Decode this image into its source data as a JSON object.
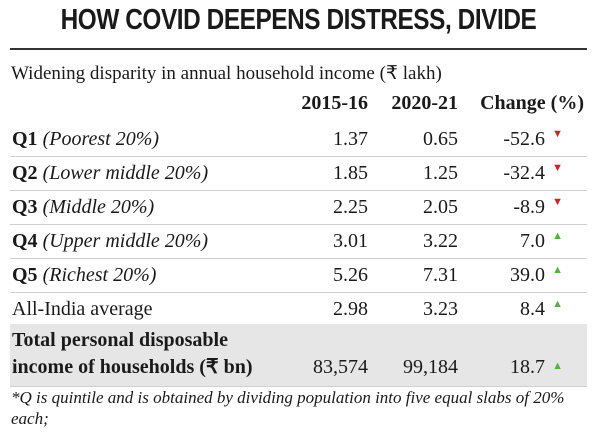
{
  "title": "HOW COVID DEEPENS DISTRESS, DIVIDE",
  "subtitle": "Widening disparity in annual household income (₹ lakh)",
  "table": {
    "columns": [
      "2015-16",
      "2020-21",
      "Change (%)"
    ],
    "rows": [
      {
        "label": "Q1",
        "note": "(Poorest 20%)",
        "values": [
          "1.37",
          "0.65",
          "-52.6"
        ]
      },
      {
        "label": "Q2",
        "note": "(Lower middle 20%)",
        "values": [
          "1.85",
          "1.25",
          "-32.4"
        ]
      },
      {
        "label": "Q3",
        "note": "(Middle 20%)",
        "values": [
          "2.25",
          "2.05",
          "-8.9"
        ]
      },
      {
        "label": "Q4",
        "note": "(Upper middle 20%)",
        "values": [
          "3.01",
          "3.22",
          "7.0"
        ]
      },
      {
        "label": "Q5",
        "note": "(Richest 20%)",
        "values": [
          "5.26",
          "7.31",
          "39.0"
        ]
      },
      {
        "label": "All-India average",
        "values": [
          "2.98",
          "3.23",
          "8.4"
        ]
      },
      {
        "label": "Total personal disposable income of households (₹ bn)",
        "values": [
          "83,574",
          "99,184",
          "18.7"
        ]
      }
    ]
  },
  "footnote": "*Q is quintile and is obtained by dividing population into five equal slabs of 20% each;"
}
